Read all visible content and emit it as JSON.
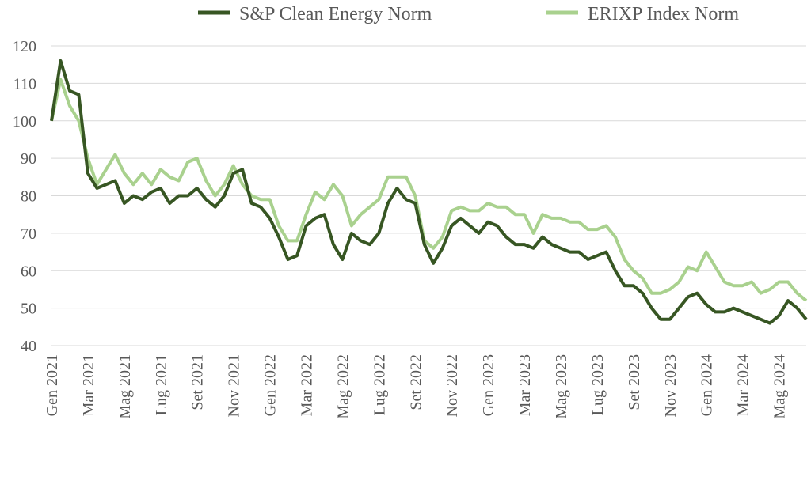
{
  "chart_data": {
    "type": "line",
    "categories": [
      "Gen 2021",
      null,
      null,
      null,
      "Mar 2021",
      null,
      null,
      null,
      "Mag 2021",
      null,
      null,
      null,
      "Lug 2021",
      null,
      null,
      null,
      "Set 2021",
      null,
      null,
      null,
      "Nov 2021",
      null,
      null,
      null,
      "Gen 2022",
      null,
      null,
      null,
      "Mar 2022",
      null,
      null,
      null,
      "Mag 2022",
      null,
      null,
      null,
      "Lug 2022",
      null,
      null,
      null,
      "Set 2022",
      null,
      null,
      null,
      "Nov 2022",
      null,
      null,
      null,
      "Gen 2023",
      null,
      null,
      null,
      "Mar 2023",
      null,
      null,
      null,
      "Mag 2023",
      null,
      null,
      null,
      "Lug 2023",
      null,
      null,
      null,
      "Set 2023",
      null,
      null,
      null,
      "Nov 2023",
      null,
      null,
      null,
      "Gen 2024",
      null,
      null,
      null,
      "Mar 2024",
      null,
      null,
      null,
      "Mag 2024",
      null,
      null,
      null
    ],
    "series": [
      {
        "name": "S&P Clean Energy Norm",
        "color": "#375623",
        "values": [
          100,
          116,
          108,
          107,
          86,
          82,
          83,
          84,
          78,
          80,
          79,
          81,
          82,
          78,
          80,
          80,
          82,
          79,
          77,
          80,
          86,
          87,
          78,
          77,
          74,
          69,
          63,
          64,
          72,
          74,
          75,
          67,
          63,
          70,
          68,
          67,
          70,
          78,
          82,
          79,
          78,
          67,
          62,
          66,
          72,
          74,
          72,
          70,
          73,
          72,
          69,
          67,
          67,
          66,
          69,
          67,
          66,
          65,
          65,
          63,
          64,
          65,
          60,
          56,
          56,
          54,
          50,
          47,
          47,
          50,
          53,
          54,
          51,
          49,
          49,
          50,
          49,
          48,
          47,
          46,
          48,
          52,
          50,
          47
        ]
      },
      {
        "name": "ERIXP Index Norm",
        "color": "#a9d18e",
        "values": [
          100,
          111,
          104,
          100,
          90,
          83,
          87,
          91,
          86,
          83,
          86,
          83,
          87,
          85,
          84,
          89,
          90,
          84,
          80,
          83,
          88,
          83,
          80,
          79,
          79,
          72,
          68,
          68,
          75,
          81,
          79,
          83,
          80,
          72,
          75,
          77,
          79,
          85,
          85,
          85,
          80,
          68,
          66,
          69,
          76,
          77,
          76,
          76,
          78,
          77,
          77,
          75,
          75,
          70,
          75,
          74,
          74,
          73,
          73,
          71,
          71,
          72,
          69,
          63,
          60,
          58,
          54,
          54,
          55,
          57,
          61,
          60,
          65,
          61,
          57,
          56,
          56,
          57,
          54,
          55,
          57,
          57,
          54,
          52
        ]
      }
    ],
    "ylim": [
      40,
      120
    ],
    "yticks": [
      40,
      50,
      60,
      70,
      80,
      90,
      100,
      110,
      120
    ],
    "grid": true,
    "legend": "top-right"
  }
}
